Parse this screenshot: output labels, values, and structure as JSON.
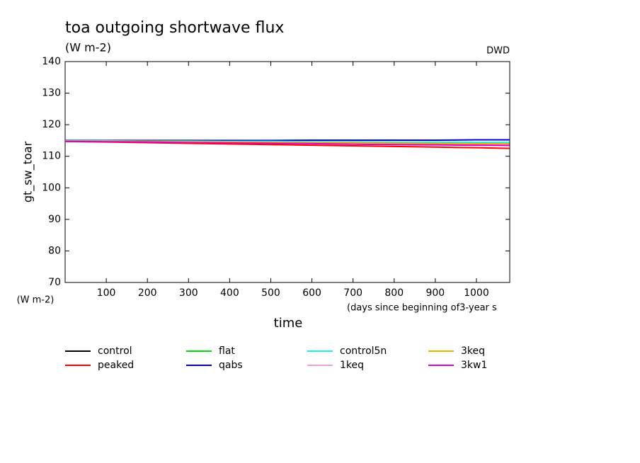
{
  "chart_data": {
    "type": "line",
    "title": "toa outgoing shortwave flux",
    "subtitle": "(W m-2)",
    "source": "DWD",
    "y_label": "gt_sw_toar",
    "y_unit": "(W m-2)",
    "x_label": "time",
    "x_unit": "(days since beginning of3-year s",
    "x": [
      0,
      100,
      200,
      300,
      400,
      500,
      600,
      700,
      800,
      900,
      1000,
      1080
    ],
    "xlim": [
      0,
      1081
    ],
    "xticks": [
      100,
      200,
      300,
      400,
      500,
      600,
      700,
      800,
      900,
      1000
    ],
    "ylim": [
      70,
      140
    ],
    "yticks": [
      70,
      80,
      90,
      100,
      110,
      120,
      130,
      140
    ],
    "series": [
      {
        "name": "control",
        "color": "#000000",
        "values": [
          114.8,
          114.7,
          114.6,
          114.5,
          114.4,
          114.3,
          114.2,
          114.1,
          114.0,
          113.9,
          113.8,
          113.7
        ]
      },
      {
        "name": "peaked",
        "color": "#ff0000",
        "values": [
          114.7,
          114.5,
          114.3,
          114.1,
          113.9,
          113.7,
          113.5,
          113.3,
          113.1,
          112.9,
          112.7,
          112.5
        ]
      },
      {
        "name": "flat",
        "color": "#00dd00",
        "values": [
          114.9,
          114.8,
          114.8,
          114.7,
          114.6,
          114.5,
          114.5,
          114.4,
          114.3,
          114.2,
          114.2,
          114.1
        ]
      },
      {
        "name": "qabs",
        "color": "#0000dd",
        "values": [
          115.0,
          115.0,
          115.0,
          115.0,
          115.0,
          115.0,
          115.1,
          115.1,
          115.1,
          115.1,
          115.2,
          115.2
        ]
      },
      {
        "name": "control5n",
        "color": "#22eeee",
        "values": [
          114.9,
          114.9,
          114.8,
          114.8,
          114.7,
          114.7,
          114.6,
          114.6,
          114.5,
          114.5,
          114.4,
          114.4
        ]
      },
      {
        "name": "1keq",
        "color": "#f0a0e0",
        "values": [
          114.8,
          114.7,
          114.6,
          114.5,
          114.4,
          114.3,
          114.2,
          114.1,
          114.0,
          113.9,
          113.8,
          113.8
        ]
      },
      {
        "name": "3keq",
        "color": "#e8b000",
        "values": [
          114.8,
          114.7,
          114.7,
          114.6,
          114.5,
          114.4,
          114.3,
          114.3,
          114.2,
          114.1,
          114.0,
          114.0
        ]
      },
      {
        "name": "3kw1",
        "color": "#e000c0",
        "values": [
          114.7,
          114.6,
          114.5,
          114.3,
          114.2,
          114.1,
          114.0,
          113.8,
          113.7,
          113.6,
          113.5,
          113.4
        ]
      }
    ]
  }
}
